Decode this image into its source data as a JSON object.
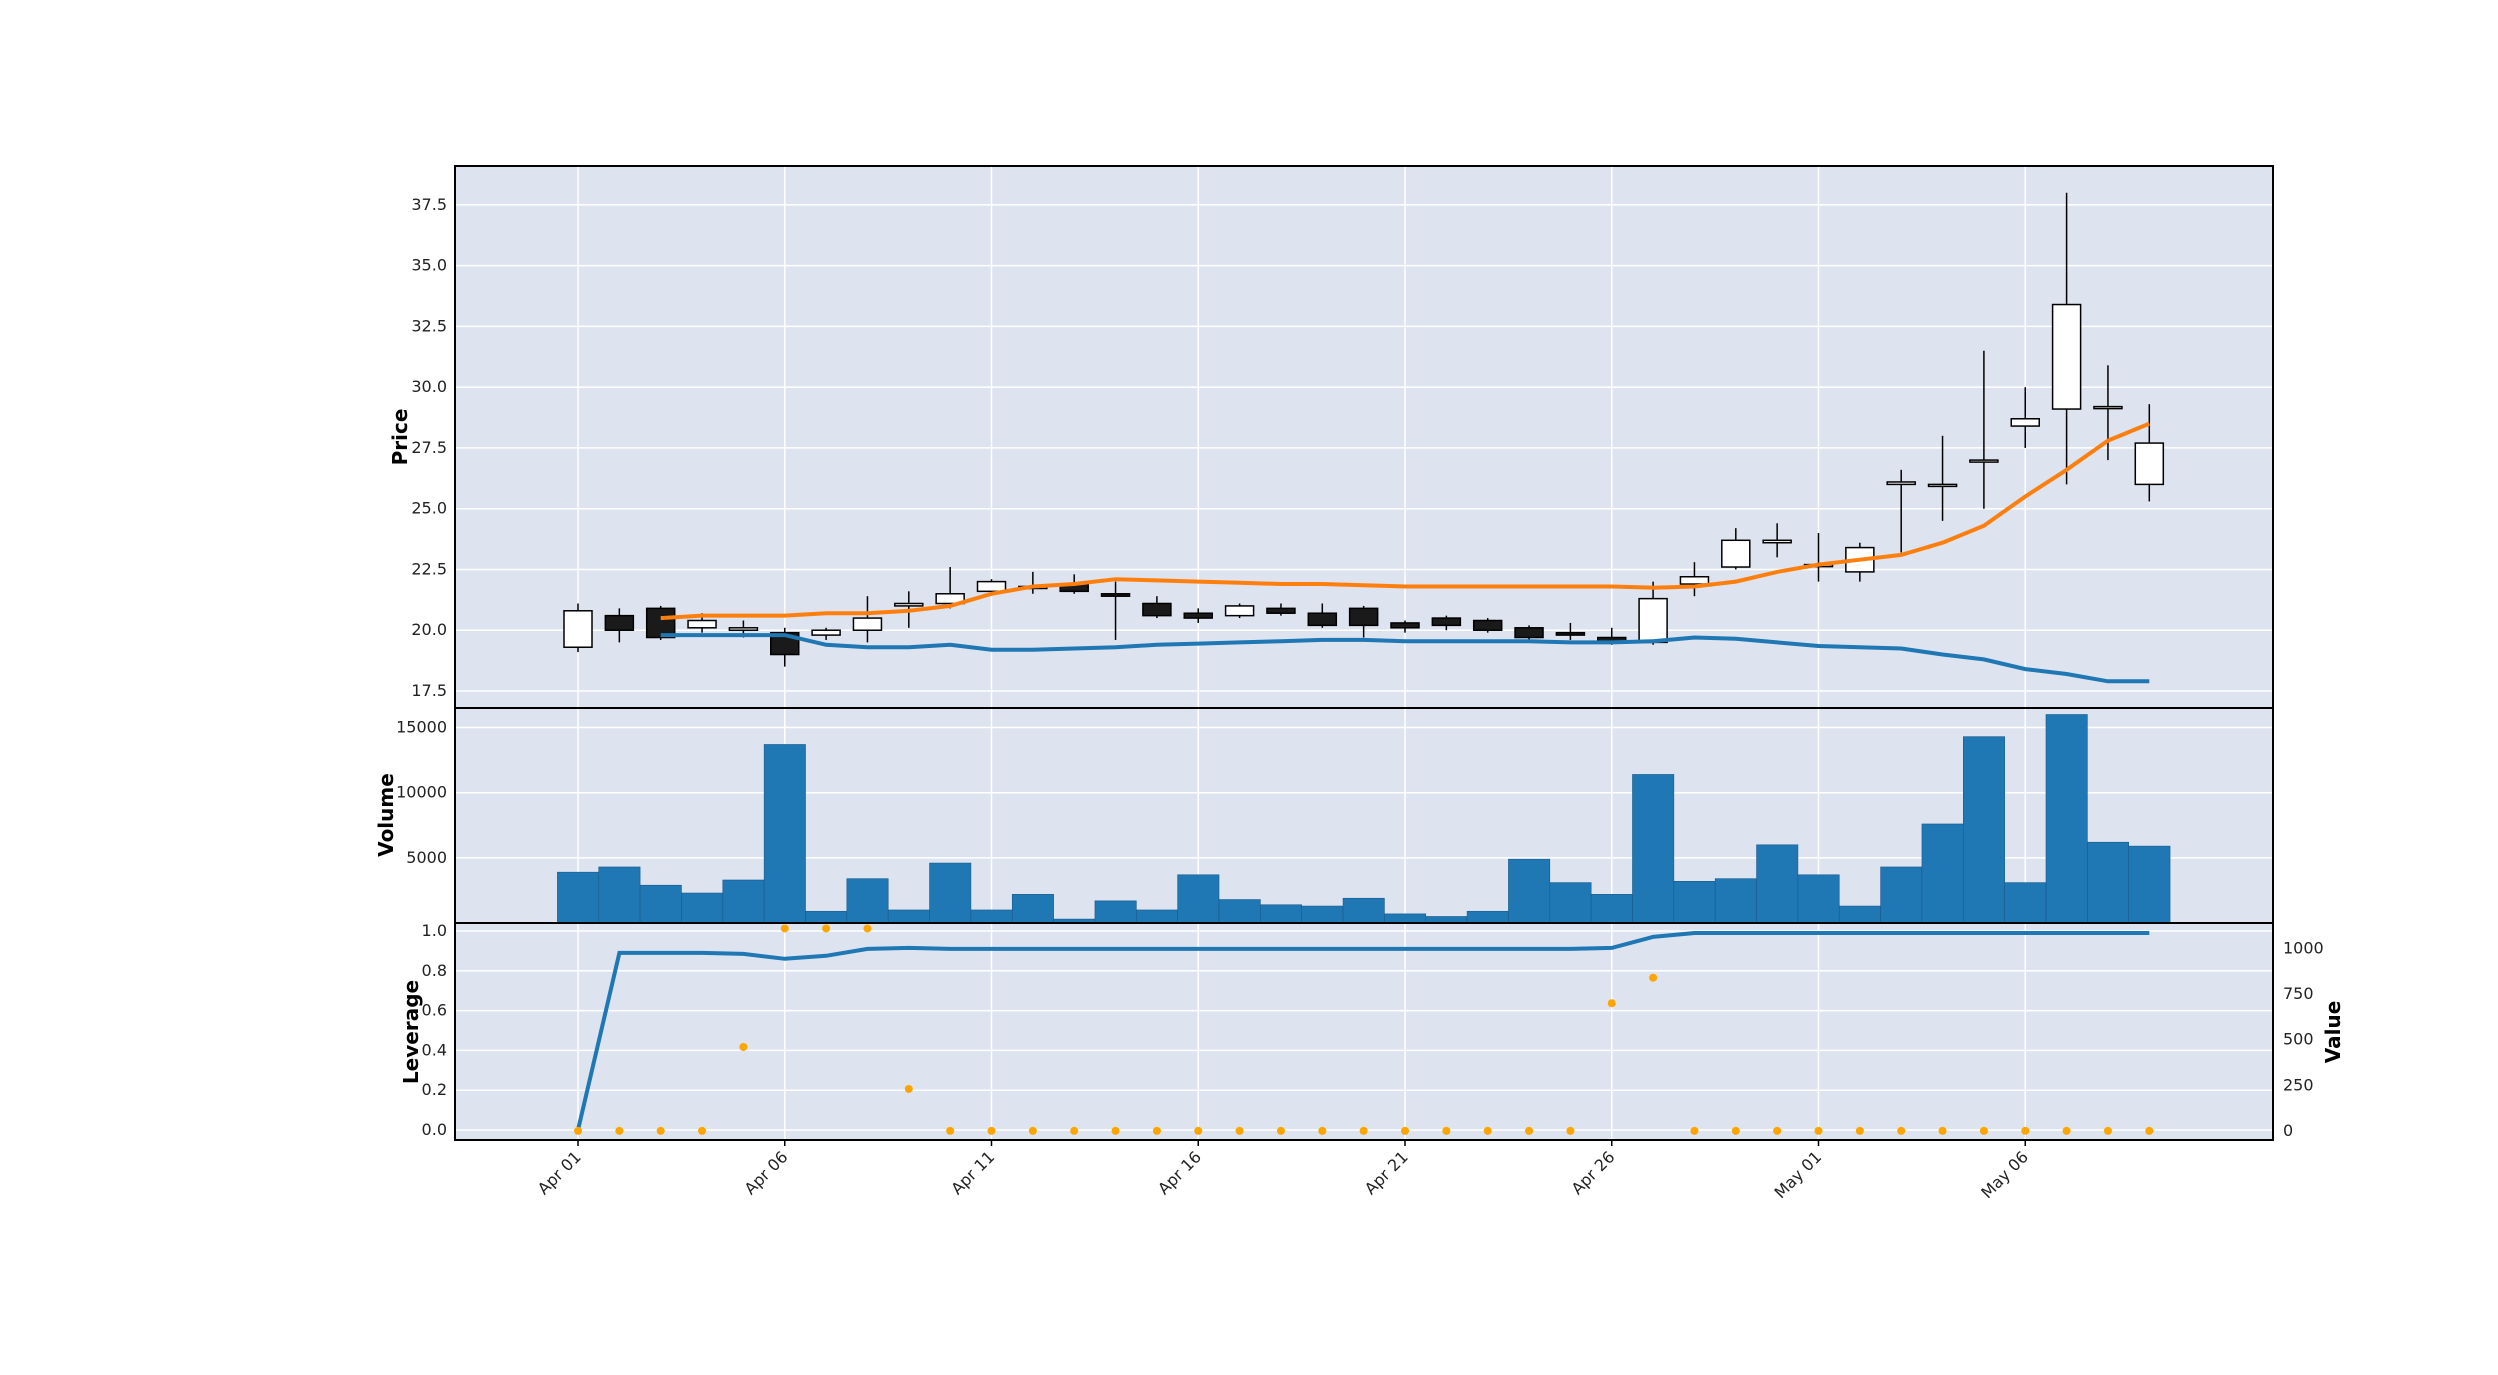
{
  "chart_data": {
    "type": "candlestick",
    "x_tick_labels": [
      "Apr 01",
      "Apr 06",
      "Apr 11",
      "Apr 16",
      "Apr 21",
      "Apr 26",
      "May 01",
      "May 06"
    ],
    "dates": [
      "Apr 01",
      "Apr 02",
      "Apr 03",
      "Apr 04",
      "Apr 05",
      "Apr 06",
      "Apr 07",
      "Apr 08",
      "Apr 09",
      "Apr 10",
      "Apr 11",
      "Apr 12",
      "Apr 13",
      "Apr 14",
      "Apr 15",
      "Apr 16",
      "Apr 17",
      "Apr 18",
      "Apr 19",
      "Apr 20",
      "Apr 21",
      "Apr 22",
      "Apr 23",
      "Apr 24",
      "Apr 25",
      "Apr 26",
      "Apr 27",
      "Apr 28",
      "Apr 29",
      "Apr 30",
      "May 01",
      "May 02",
      "May 03",
      "May 04",
      "May 05",
      "May 06",
      "May 07",
      "May 08",
      "May 09"
    ],
    "colors": {
      "panel_bg": "#dde3ef",
      "up_fill": "#ffffff",
      "down_fill": "#1a1a1a",
      "volume": "#1f77b4",
      "line_blue": "#1f77b4",
      "line_orange": "#ff7f0e",
      "dots": "#ffa500"
    },
    "price_panel": {
      "ylabel": "Price",
      "ylim": [
        16.8,
        39.1
      ],
      "yticks": [
        "17.5",
        "20.0",
        "22.5",
        "25.0",
        "27.5",
        "30.0",
        "32.5",
        "35.0",
        "37.5"
      ],
      "ohlc": [
        [
          19.3,
          21.1,
          19.1,
          20.8
        ],
        [
          20.6,
          20.9,
          19.5,
          20.0
        ],
        [
          20.9,
          21.0,
          19.6,
          19.7
        ],
        [
          20.1,
          20.7,
          19.9,
          20.4
        ],
        [
          20.0,
          20.4,
          19.7,
          20.1
        ],
        [
          19.9,
          20.1,
          18.5,
          19.0
        ],
        [
          19.8,
          20.1,
          19.6,
          20.0
        ],
        [
          20.0,
          21.4,
          19.5,
          20.5
        ],
        [
          21.0,
          21.6,
          20.1,
          21.1
        ],
        [
          21.1,
          22.6,
          20.9,
          21.5
        ],
        [
          21.6,
          22.1,
          21.5,
          22.0
        ],
        [
          21.8,
          22.4,
          21.5,
          21.8
        ],
        [
          21.9,
          22.3,
          21.5,
          21.6
        ],
        [
          21.5,
          22.0,
          19.6,
          21.4
        ],
        [
          21.1,
          21.4,
          20.5,
          20.6
        ],
        [
          20.7,
          20.9,
          20.3,
          20.5
        ],
        [
          20.6,
          21.1,
          20.5,
          21.0
        ],
        [
          20.9,
          21.1,
          20.6,
          20.7
        ],
        [
          20.7,
          21.1,
          20.1,
          20.2
        ],
        [
          20.9,
          21.0,
          19.7,
          20.2
        ],
        [
          20.3,
          20.4,
          19.9,
          20.1
        ],
        [
          20.5,
          20.6,
          20.0,
          20.2
        ],
        [
          20.4,
          20.5,
          19.9,
          20.0
        ],
        [
          20.1,
          20.2,
          19.5,
          19.7
        ],
        [
          19.9,
          20.3,
          19.6,
          19.8
        ],
        [
          19.7,
          20.1,
          19.4,
          19.5
        ],
        [
          19.5,
          22.0,
          19.4,
          21.3
        ],
        [
          21.9,
          22.8,
          21.4,
          22.2
        ],
        [
          22.6,
          24.2,
          22.5,
          23.7
        ],
        [
          23.6,
          24.4,
          23.0,
          23.7
        ],
        [
          22.7,
          24.0,
          22.0,
          22.7
        ],
        [
          22.4,
          23.6,
          22.0,
          23.4
        ],
        [
          26.0,
          26.6,
          23.2,
          26.1
        ],
        [
          26.0,
          28.0,
          24.5,
          26.0
        ],
        [
          27.0,
          31.5,
          25.0,
          27.0
        ],
        [
          28.4,
          30.0,
          27.5,
          28.7
        ],
        [
          29.1,
          38.0,
          26.0,
          33.4
        ],
        [
          29.2,
          30.9,
          27.0,
          29.2
        ],
        [
          26.0,
          29.3,
          25.3,
          27.7
        ]
      ],
      "line_orange": [
        null,
        null,
        20.5,
        20.6,
        20.6,
        20.6,
        20.7,
        20.7,
        20.8,
        21.0,
        21.5,
        21.8,
        21.9,
        22.1,
        22.05,
        22.0,
        21.95,
        21.9,
        21.9,
        21.85,
        21.8,
        21.8,
        21.8,
        21.8,
        21.8,
        21.8,
        21.75,
        21.8,
        22.0,
        22.4,
        22.7,
        22.9,
        23.1,
        23.6,
        24.3,
        25.5,
        26.6,
        27.8,
        28.5
      ],
      "line_blue": [
        null,
        null,
        19.8,
        19.8,
        19.8,
        19.8,
        19.4,
        19.3,
        19.3,
        19.4,
        19.2,
        19.2,
        19.25,
        19.3,
        19.4,
        19.45,
        19.5,
        19.55,
        19.6,
        19.6,
        19.55,
        19.55,
        19.55,
        19.55,
        19.5,
        19.5,
        19.55,
        19.7,
        19.65,
        19.5,
        19.35,
        19.3,
        19.25,
        19.0,
        18.8,
        18.4,
        18.2,
        17.9,
        17.9
      ]
    },
    "volume_panel": {
      "ylabel": "Volume",
      "ylim": [
        0,
        16500
      ],
      "yticks": [
        "5000",
        "10000",
        "15000"
      ],
      "values": [
        3900,
        4300,
        2900,
        2300,
        3300,
        13700,
        900,
        3400,
        1000,
        4600,
        1000,
        2200,
        300,
        1700,
        1000,
        3700,
        1800,
        1400,
        1300,
        1900,
        700,
        500,
        900,
        4900,
        3100,
        2200,
        11400,
        3200,
        3400,
        6000,
        3700,
        1300,
        4300,
        7600,
        14300,
        3100,
        16000,
        6200,
        5900
      ]
    },
    "leverage_panel": {
      "ylabel": "Leverage",
      "ylim": [
        -0.05,
        1.04
      ],
      "yticks": [
        "0.0",
        "0.2",
        "0.4",
        "0.6",
        "0.8",
        "1.0"
      ],
      "line": [
        0.0,
        0.89,
        0.89,
        0.89,
        0.885,
        0.86,
        0.875,
        0.91,
        0.915,
        0.91,
        0.91,
        0.91,
        0.91,
        0.91,
        0.91,
        0.91,
        0.91,
        0.91,
        0.91,
        0.91,
        0.91,
        0.91,
        0.91,
        0.91,
        0.91,
        0.915,
        0.97,
        0.99,
        0.99,
        0.99,
        0.99,
        0.99,
        0.99,
        0.99,
        0.99,
        0.99,
        0.99,
        0.99,
        0.99
      ],
      "y2label": "Value",
      "y2lim": [
        -50,
        1140
      ],
      "y2ticks": [
        "0",
        "250",
        "500",
        "750",
        "1000"
      ],
      "value_dots": [
        0,
        0,
        0,
        0,
        460,
        1110,
        1110,
        1110,
        230,
        0,
        0,
        0,
        0,
        0,
        0,
        0,
        0,
        0,
        0,
        0,
        0,
        0,
        0,
        0,
        0,
        700,
        840,
        0,
        0,
        0,
        0,
        0,
        0,
        0,
        0,
        0,
        0,
        0,
        0
      ]
    }
  }
}
